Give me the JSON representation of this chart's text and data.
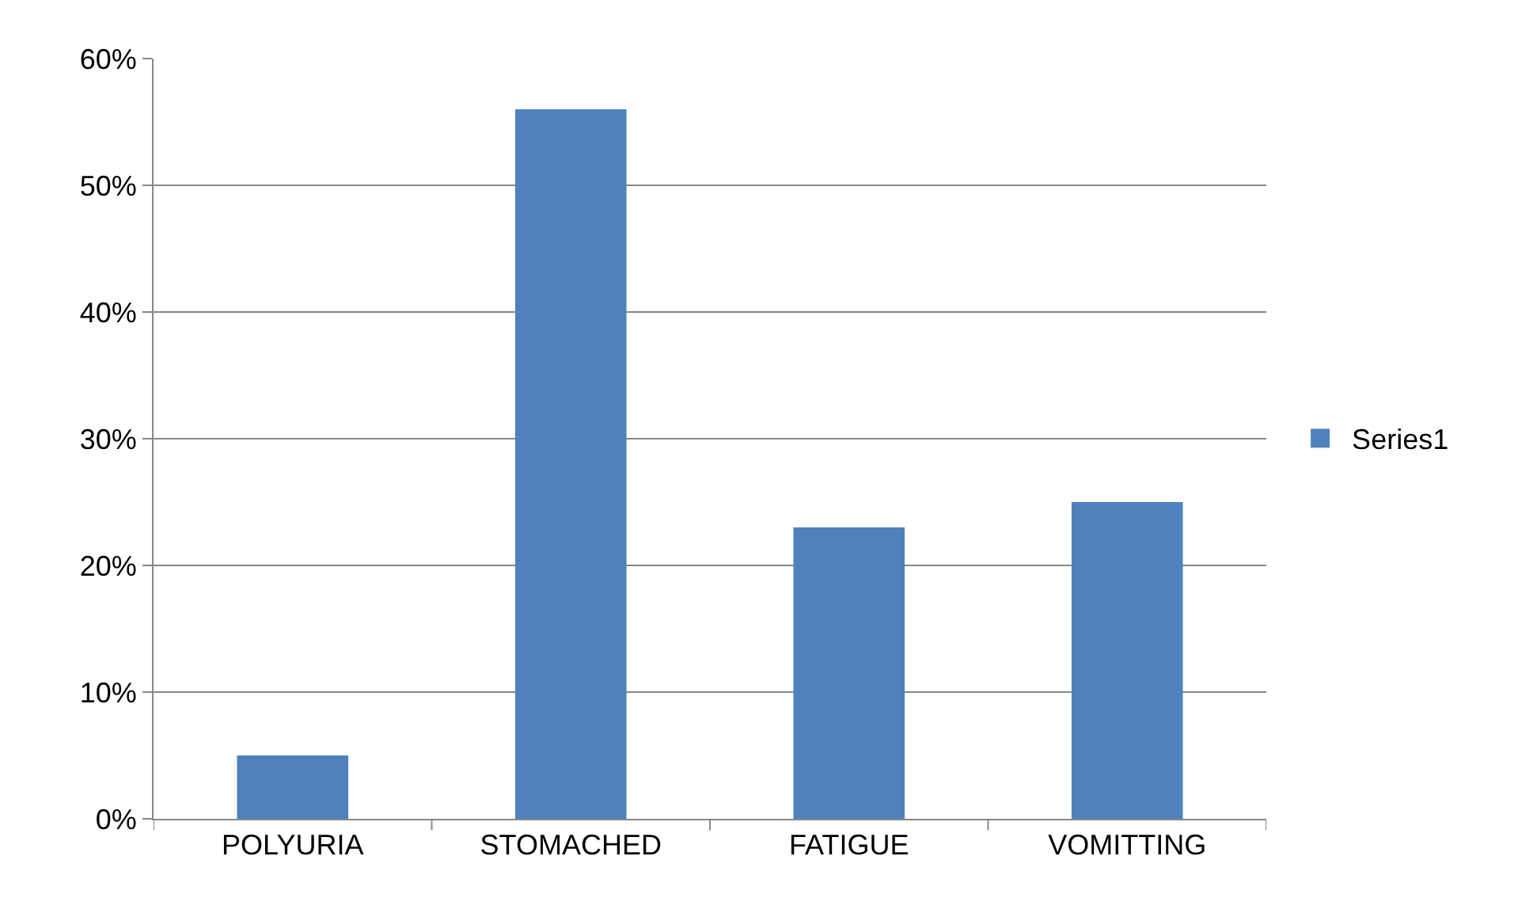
{
  "chart_data": {
    "type": "bar",
    "categories": [
      "POLYURIA",
      "STOMACHED",
      "FATIGUE",
      "VOMITTING"
    ],
    "series": [
      {
        "name": "Series1",
        "color": "#4f81bd",
        "values": [
          5,
          56,
          23,
          25
        ]
      }
    ],
    "ylim": [
      0,
      60
    ],
    "yticks": [
      {
        "value": 0,
        "label": "0%"
      },
      {
        "value": 10,
        "label": "10%"
      },
      {
        "value": 20,
        "label": "20%"
      },
      {
        "value": 30,
        "label": "30%"
      },
      {
        "value": 40,
        "label": "40%"
      },
      {
        "value": 50,
        "label": "50%"
      },
      {
        "value": 60,
        "label": "60%"
      }
    ],
    "grid": "y",
    "legend": "right"
  }
}
